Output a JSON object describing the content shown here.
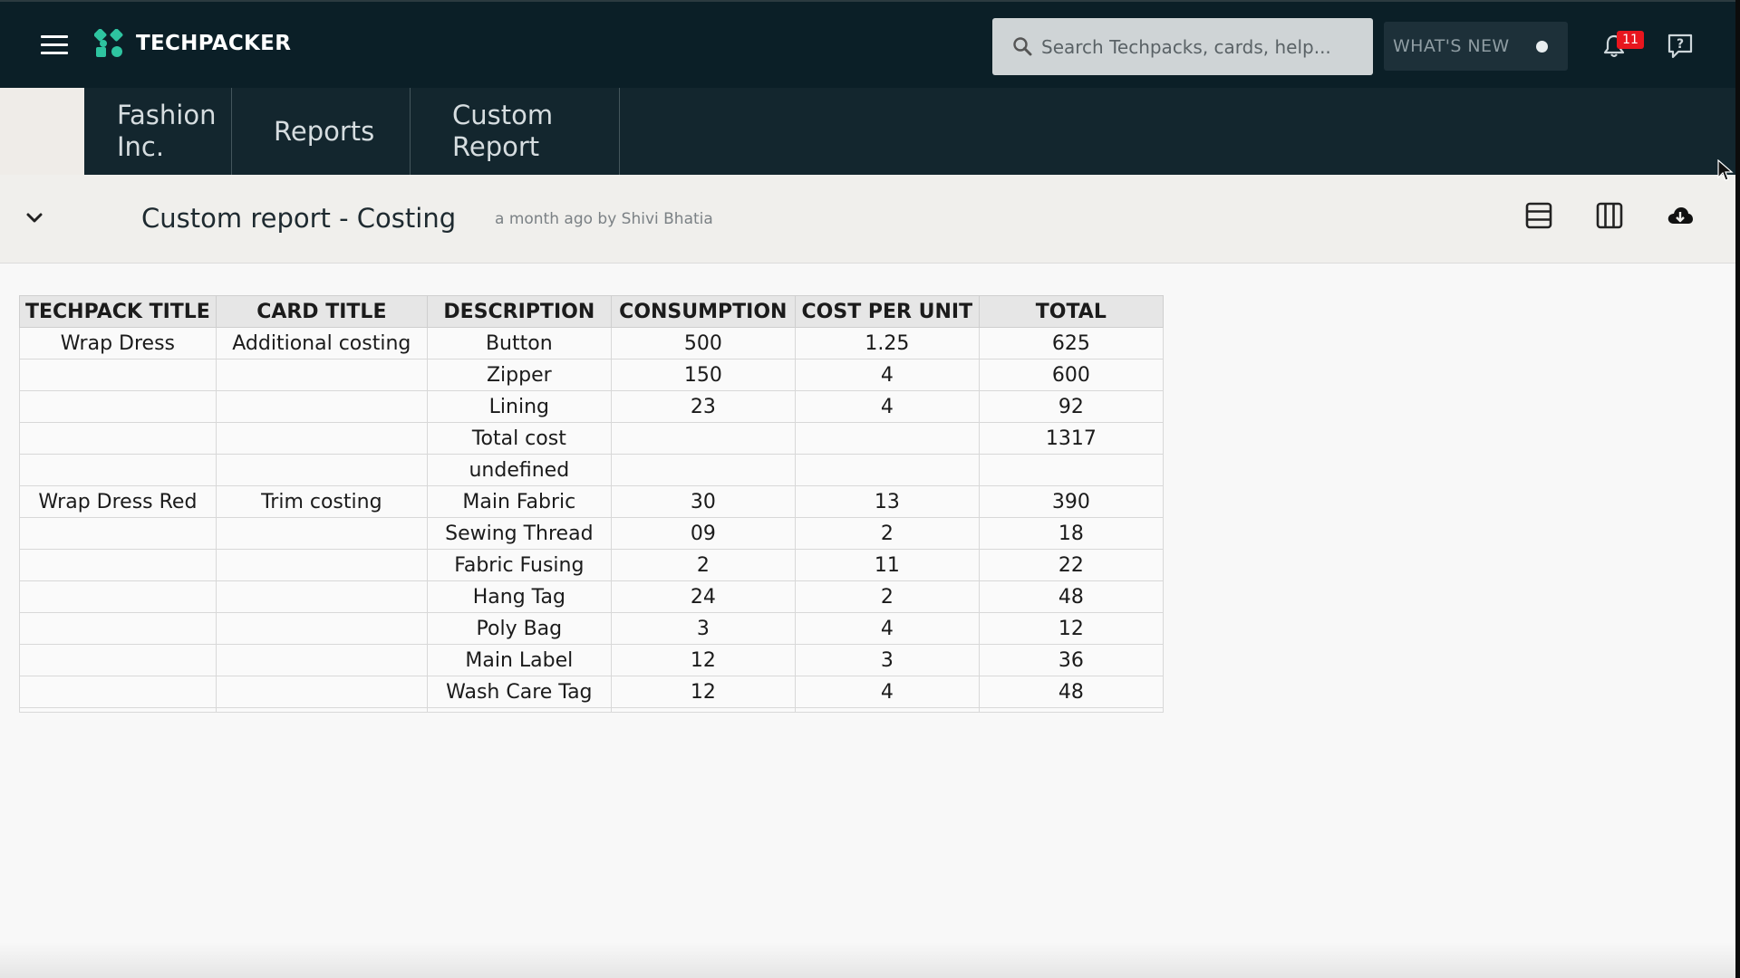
{
  "header": {
    "brand": "TECHPACKER",
    "search_placeholder": "Search Techpacks, cards, help...",
    "whats_new": "WHAT'S NEW",
    "notifications_count": "11"
  },
  "tabs": [
    {
      "label_line1": "Fashion",
      "label_line2": "Inc."
    },
    {
      "label_line1": "Reports",
      "label_line2": ""
    },
    {
      "label_line1": "Custom",
      "label_line2": "Report"
    }
  ],
  "report": {
    "title": "Custom report - Costing",
    "meta": "a month ago by Shivi Bhatia"
  },
  "table": {
    "headers": [
      "TECHPACK TITLE",
      "CARD TITLE",
      "DESCRIPTION",
      "CONSUMPTION",
      "COST PER UNIT",
      "TOTAL"
    ],
    "rows": [
      [
        "Wrap Dress",
        "Additional costing",
        "Button",
        "500",
        "1.25",
        "625"
      ],
      [
        "",
        "",
        "Zipper",
        "150",
        "4",
        "600"
      ],
      [
        "",
        "",
        "Lining",
        "23",
        "4",
        "92"
      ],
      [
        "",
        "",
        "Total cost",
        "",
        "",
        "1317"
      ],
      [
        "",
        "",
        "undefined",
        "",
        "",
        ""
      ],
      [
        "Wrap Dress Red",
        "Trim costing",
        "Main Fabric",
        "30",
        "13",
        "390"
      ],
      [
        "",
        "",
        "Sewing Thread",
        "09",
        "2",
        "18"
      ],
      [
        "",
        "",
        "Fabric Fusing",
        "2",
        "11",
        "22"
      ],
      [
        "",
        "",
        "Hang Tag",
        "24",
        "2",
        "48"
      ],
      [
        "",
        "",
        "Poly Bag",
        "3",
        "4",
        "12"
      ],
      [
        "",
        "",
        "Main Label",
        "12",
        "3",
        "36"
      ],
      [
        "",
        "",
        "Wash Care Tag",
        "12",
        "4",
        "48"
      ]
    ]
  },
  "colors": {
    "topbar": "#0b1f27",
    "tabbar": "#13262e",
    "logo": "#2ec4a0",
    "badge": "#e8161e"
  }
}
